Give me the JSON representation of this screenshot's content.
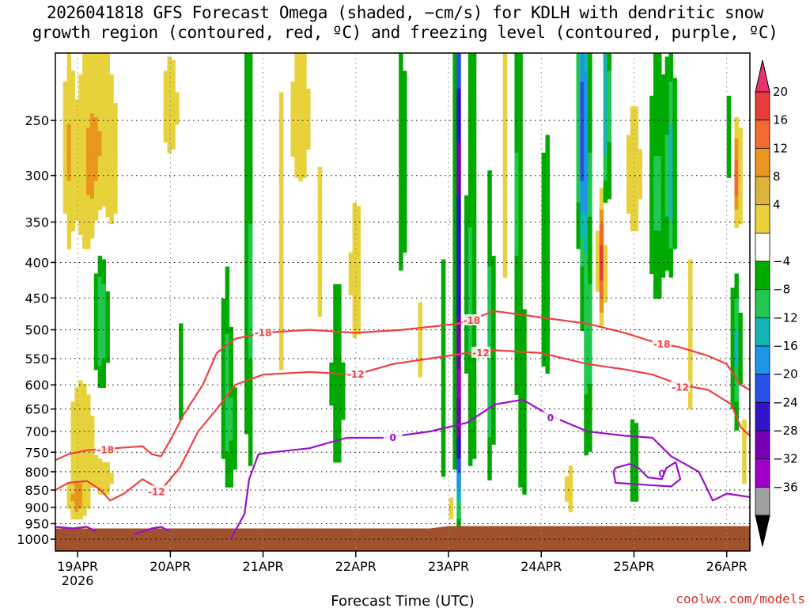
{
  "title": {
    "line1": "2026041818 GFS Forecast Omega (shaded, −cm/s) for KDLH with dendritic snow",
    "line2": "growth region (contoured, red, ºC) and freezing level (contoured, purple, ºC)"
  },
  "credit": "coolwx.com/models",
  "chart_data": {
    "type": "heatmap",
    "xlabel": "Forecast Time (UTC)",
    "ylabel": "",
    "x_ticks": [
      {
        "t": 0.5,
        "label": "19APR",
        "sub": "2026"
      },
      {
        "t": 1.5,
        "label": "20APR",
        "sub": ""
      },
      {
        "t": 2.5,
        "label": "21APR",
        "sub": ""
      },
      {
        "t": 3.5,
        "label": "22APR",
        "sub": ""
      },
      {
        "t": 4.5,
        "label": "23APR",
        "sub": ""
      },
      {
        "t": 5.5,
        "label": "24APR",
        "sub": ""
      },
      {
        "t": 6.5,
        "label": "25APR",
        "sub": ""
      },
      {
        "t": 7.5,
        "label": "26APR",
        "sub": ""
      }
    ],
    "x_range_days": [
      0.26,
      7.75
    ],
    "y_ticks": [
      250,
      300,
      350,
      400,
      450,
      500,
      550,
      600,
      650,
      700,
      750,
      800,
      850,
      900,
      950,
      1000
    ],
    "y_range_hpa": [
      200,
      1040
    ],
    "y_scale": "log",
    "grid": "dotted",
    "colorbar": {
      "labels": [
        20,
        16,
        12,
        8,
        4,
        -4,
        -8,
        -12,
        -16,
        -20,
        -24,
        -28,
        -32,
        -36
      ],
      "colors": [
        "#e8326e",
        "#e83c3c",
        "#f06a32",
        "#e8961e",
        "#dcb43c",
        "#e8d23c",
        "#ffffff",
        "#00aa00",
        "#20c850",
        "#14b4b4",
        "#1e96e6",
        "#2850e6",
        "#3214c8",
        "#7800b4",
        "#a000c8",
        "#a0a0a0",
        "#000000"
      ],
      "top_arrow_color": "#e8326e",
      "bottom_arrow_color": "#000000"
    },
    "ground_color": "#a0522d",
    "contours": [
      {
        "name": "-18",
        "color": "#f04040",
        "labels": [
          {
            "t": 2.5,
            "p": 505,
            "text": "-18"
          },
          {
            "t": 0.8,
            "p": 745,
            "text": "-18"
          },
          {
            "t": 4.75,
            "p": 485,
            "text": "-18"
          },
          {
            "t": 6.8,
            "p": 525,
            "text": "-18"
          }
        ],
        "points": [
          [
            0.26,
            770
          ],
          [
            0.4,
            755
          ],
          [
            0.6,
            745
          ],
          [
            0.9,
            740
          ],
          [
            1.2,
            735
          ],
          [
            1.3,
            755
          ],
          [
            1.4,
            760
          ],
          [
            1.5,
            720
          ],
          [
            1.65,
            660
          ],
          [
            1.85,
            600
          ],
          [
            2.0,
            540
          ],
          [
            2.2,
            515
          ],
          [
            2.5,
            505
          ],
          [
            3.0,
            500
          ],
          [
            3.5,
            505
          ],
          [
            4.0,
            500
          ],
          [
            4.3,
            495
          ],
          [
            4.6,
            490
          ],
          [
            5.0,
            470
          ],
          [
            5.5,
            480
          ],
          [
            6.0,
            490
          ],
          [
            6.4,
            505
          ],
          [
            6.7,
            520
          ],
          [
            7.0,
            530
          ],
          [
            7.3,
            545
          ],
          [
            7.5,
            560
          ],
          [
            7.65,
            600
          ],
          [
            7.75,
            610
          ]
        ]
      },
      {
        "name": "-12",
        "color": "#f04040",
        "labels": [
          {
            "t": 3.5,
            "p": 580,
            "text": "-12"
          },
          {
            "t": 1.35,
            "p": 855,
            "text": "-12"
          },
          {
            "t": 4.85,
            "p": 540,
            "text": "-12"
          },
          {
            "t": 7.0,
            "p": 605,
            "text": "-12"
          }
        ],
        "points": [
          [
            0.26,
            850
          ],
          [
            0.4,
            830
          ],
          [
            0.6,
            825
          ],
          [
            0.75,
            850
          ],
          [
            0.85,
            880
          ],
          [
            1.0,
            860
          ],
          [
            1.2,
            820
          ],
          [
            1.4,
            850
          ],
          [
            1.6,
            790
          ],
          [
            1.8,
            700
          ],
          [
            2.0,
            650
          ],
          [
            2.2,
            600
          ],
          [
            2.5,
            580
          ],
          [
            3.0,
            575
          ],
          [
            3.5,
            580
          ],
          [
            3.9,
            560
          ],
          [
            4.3,
            550
          ],
          [
            4.7,
            540
          ],
          [
            5.0,
            535
          ],
          [
            5.5,
            540
          ],
          [
            6.0,
            560
          ],
          [
            6.4,
            570
          ],
          [
            6.7,
            580
          ],
          [
            7.0,
            600
          ],
          [
            7.3,
            610
          ],
          [
            7.55,
            640
          ],
          [
            7.65,
            690
          ],
          [
            7.75,
            710
          ]
        ]
      },
      {
        "name": "0",
        "color": "#9a10c8",
        "labels": [
          {
            "t": 3.9,
            "p": 715,
            "text": "0"
          },
          {
            "t": 5.6,
            "p": 670,
            "text": "0"
          },
          {
            "t": 6.8,
            "p": 805,
            "text": "0"
          }
        ],
        "points": [
          [
            2.15,
            1000
          ],
          [
            2.3,
            920
          ],
          [
            2.35,
            820
          ],
          [
            2.45,
            755
          ],
          [
            2.6,
            750
          ],
          [
            3.0,
            740
          ],
          [
            3.4,
            715
          ],
          [
            3.8,
            715
          ],
          [
            4.3,
            700
          ],
          [
            4.7,
            680
          ],
          [
            5.0,
            640
          ],
          [
            5.3,
            630
          ],
          [
            5.6,
            665
          ],
          [
            6.0,
            700
          ],
          [
            6.4,
            710
          ],
          [
            6.7,
            715
          ],
          [
            6.9,
            760
          ],
          [
            7.2,
            800
          ],
          [
            7.35,
            880
          ],
          [
            7.5,
            860
          ],
          [
            7.75,
            870
          ]
        ]
      },
      {
        "name": "0b",
        "color": "#9a10c8",
        "labels": [],
        "points": [
          [
            0.26,
            960
          ],
          [
            0.45,
            965
          ],
          [
            0.6,
            960
          ],
          [
            0.7,
            975
          ]
        ]
      },
      {
        "name": "0c",
        "color": "#9a10c8",
        "labels": [],
        "points": [
          [
            1.1,
            985
          ],
          [
            1.3,
            965
          ],
          [
            1.4,
            960
          ],
          [
            1.5,
            975
          ]
        ]
      },
      {
        "name": "0d",
        "color": "#9a10c8",
        "labels": [],
        "points": [
          [
            6.3,
            790
          ],
          [
            6.45,
            780
          ],
          [
            6.55,
            790
          ],
          [
            6.65,
            815
          ],
          [
            6.8,
            820
          ],
          [
            6.85,
            790
          ],
          [
            6.95,
            775
          ],
          [
            7.0,
            820
          ],
          [
            6.9,
            840
          ],
          [
            6.6,
            835
          ],
          [
            6.3,
            830
          ],
          [
            6.28,
            800
          ],
          [
            6.3,
            790
          ]
        ]
      }
    ],
    "omega_blobs": [
      {
        "t": 0.4,
        "p": 275,
        "rt": 0.05,
        "rp": 120,
        "peak": 6
      },
      {
        "t": 0.7,
        "p": 290,
        "rt": 0.25,
        "rp": 110,
        "peak": 10
      },
      {
        "t": 1.5,
        "p": 240,
        "rt": 0.12,
        "rp": 60,
        "peak": 6
      },
      {
        "t": 0.55,
        "p": 720,
        "rt": 0.18,
        "rp": 170,
        "peak": 7
      },
      {
        "t": 0.5,
        "p": 880,
        "rt": 0.1,
        "rp": 60,
        "peak": 8
      },
      {
        "t": 0.8,
        "p": 820,
        "rt": 0.1,
        "rp": 60,
        "peak": 6
      },
      {
        "t": 0.75,
        "p": 480,
        "rt": 0.08,
        "rp": 140,
        "peak": -13
      },
      {
        "t": 1.6,
        "p": 580,
        "rt": 0.04,
        "rp": 160,
        "peak": -6
      },
      {
        "t": 2.35,
        "p": 450,
        "rt": 0.05,
        "rp": 380,
        "peak": -9
      },
      {
        "t": 2.1,
        "p": 560,
        "rt": 0.05,
        "rp": 200,
        "peak": -7
      },
      {
        "t": 2.15,
        "p": 700,
        "rt": 0.08,
        "rp": 180,
        "peak": -7
      },
      {
        "t": 2.7,
        "p": 430,
        "rt": 0.05,
        "rp": 300,
        "peak": 5
      },
      {
        "t": 2.9,
        "p": 250,
        "rt": 0.15,
        "rp": 90,
        "peak": 6
      },
      {
        "t": 3.1,
        "p": 400,
        "rt": 0.05,
        "rp": 180,
        "peak": 5
      },
      {
        "t": 3.3,
        "p": 600,
        "rt": 0.08,
        "rp": 220,
        "peak": -8
      },
      {
        "t": 3.5,
        "p": 420,
        "rt": 0.1,
        "rp": 150,
        "peak": 6
      },
      {
        "t": 4.0,
        "p": 300,
        "rt": 0.05,
        "rp": 160,
        "peak": -7
      },
      {
        "t": 4.2,
        "p": 520,
        "rt": 0.05,
        "rp": 140,
        "peak": 5
      },
      {
        "t": 4.45,
        "p": 620,
        "rt": 0.05,
        "rp": 360,
        "peak": -6
      },
      {
        "t": 4.5,
        "p": 900,
        "rt": 0.1,
        "rp": 60,
        "peak": 6
      },
      {
        "t": 4.6,
        "p": 600,
        "rt": 0.025,
        "rp": 300,
        "peak": -36
      },
      {
        "t": 4.6,
        "p": 260,
        "rt": 0.03,
        "rp": 120,
        "peak": -20
      },
      {
        "t": 4.75,
        "p": 450,
        "rt": 0.07,
        "rp": 380,
        "peak": -9
      },
      {
        "t": 4.95,
        "p": 560,
        "rt": 0.04,
        "rp": 260,
        "peak": -12
      },
      {
        "t": 5.1,
        "p": 300,
        "rt": 0.04,
        "rp": 200,
        "peak": 6
      },
      {
        "t": 5.25,
        "p": 330,
        "rt": 0.06,
        "rp": 280,
        "peak": -9
      },
      {
        "t": 5.3,
        "p": 700,
        "rt": 0.05,
        "rp": 200,
        "peak": -8
      },
      {
        "t": 5.55,
        "p": 420,
        "rt": 0.06,
        "rp": 200,
        "peak": -8
      },
      {
        "t": 5.8,
        "p": 850,
        "rt": 0.04,
        "rp": 100,
        "peak": 7
      },
      {
        "t": 5.95,
        "p": 260,
        "rt": 0.06,
        "rp": 120,
        "peak": -22
      },
      {
        "t": 6.0,
        "p": 530,
        "rt": 0.06,
        "rp": 250,
        "peak": -10
      },
      {
        "t": 6.2,
        "p": 240,
        "rt": 0.04,
        "rp": 100,
        "peak": -16
      },
      {
        "t": 6.15,
        "p": 400,
        "rt": 0.04,
        "rp": 80,
        "peak": 18
      },
      {
        "t": 6.5,
        "p": 300,
        "rt": 0.12,
        "rp": 100,
        "peak": 6
      },
      {
        "t": 6.5,
        "p": 780,
        "rt": 0.05,
        "rp": 140,
        "peak": -8
      },
      {
        "t": 6.75,
        "p": 320,
        "rt": 0.1,
        "rp": 150,
        "peak": -9
      },
      {
        "t": 6.9,
        "p": 300,
        "rt": 0.05,
        "rp": 100,
        "peak": -14
      },
      {
        "t": 7.1,
        "p": 520,
        "rt": 0.05,
        "rp": 200,
        "peak": 6
      },
      {
        "t": 7.55,
        "p": 280,
        "rt": 0.05,
        "rp": 120,
        "peak": -8
      },
      {
        "t": 7.6,
        "p": 340,
        "rt": 0.06,
        "rp": 120,
        "peak": 12
      },
      {
        "t": 7.62,
        "p": 300,
        "rt": 0.02,
        "rp": 40,
        "peak": 18
      },
      {
        "t": 7.6,
        "p": 500,
        "rt": 0.05,
        "rp": 180,
        "peak": -14
      },
      {
        "t": 7.7,
        "p": 750,
        "rt": 0.04,
        "rp": 150,
        "peak": 6
      }
    ]
  }
}
